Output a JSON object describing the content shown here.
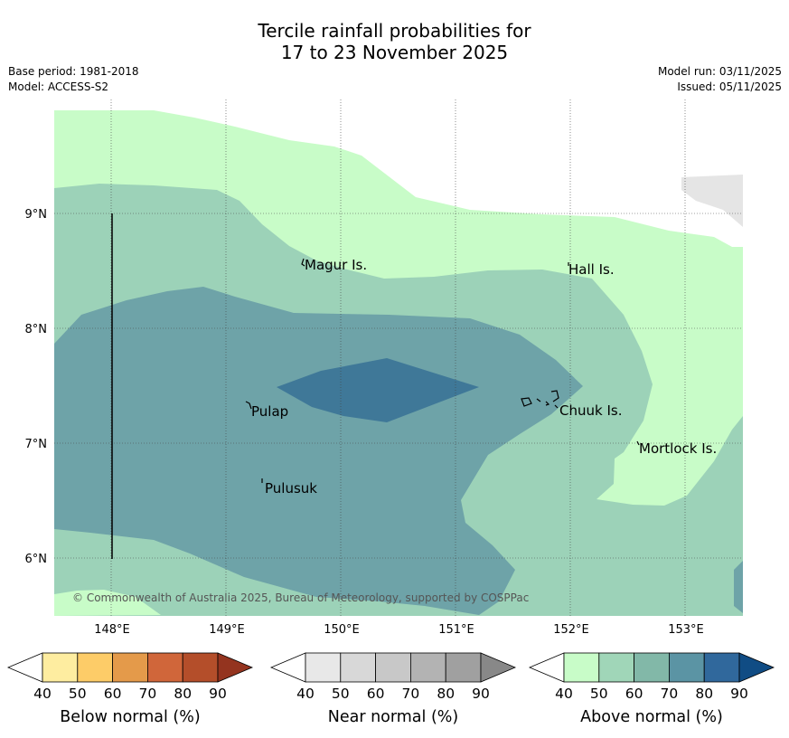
{
  "title_line1": "Tercile rainfall probabilities for",
  "title_line2": "17 to 23 November 2025",
  "meta": {
    "base_period": "Base period: 1981-2018",
    "model": "Model: ACCESS-S2",
    "model_run": "Model run: 03/11/2025",
    "issued": "Issued: 05/11/2025"
  },
  "axes": {
    "lon_ticks": [
      "148°E",
      "149°E",
      "150°E",
      "151°E",
      "152°E",
      "153°E"
    ],
    "lat_ticks": [
      "9°N",
      "8°N",
      "7°N",
      "6°N"
    ]
  },
  "places": [
    "Magur Is.",
    "Hall Is.",
    "Pulap",
    "Chuuk Is.",
    "Mortlock Is.",
    "Pulusuk"
  ],
  "copyright": "© Commonwealth of Australia 2025, Bureau of Meteorology, supported by COSPPac",
  "colorbars": [
    {
      "title": "Below normal (%)",
      "labels": [
        "40",
        "50",
        "60",
        "70",
        "80",
        "90"
      ],
      "colors": [
        "#ffffff",
        "#feeda0",
        "#fdcc68",
        "#e49a4a",
        "#d0663a",
        "#b44e2a",
        "#94341f"
      ]
    },
    {
      "title": "Near normal (%)",
      "labels": [
        "40",
        "50",
        "60",
        "70",
        "80",
        "90"
      ],
      "colors": [
        "#ffffff",
        "#e8e8e8",
        "#d8d8d8",
        "#c8c8c8",
        "#b3b3b3",
        "#a0a0a0",
        "#888888"
      ]
    },
    {
      "title": "Above normal (%)",
      "labels": [
        "40",
        "50",
        "60",
        "70",
        "80",
        "90"
      ],
      "colors": [
        "#ffffff",
        "#c8fcc8",
        "#a0d6b8",
        "#82b8a8",
        "#5b94a4",
        "#30689c",
        "#104c84"
      ]
    }
  ],
  "zone_colors": {
    "a40": "#c8fcc8",
    "a50": "#9cd2b8",
    "a60": "#6ea3a8",
    "a70": "#3f7898",
    "near": "#e5e5e5"
  }
}
